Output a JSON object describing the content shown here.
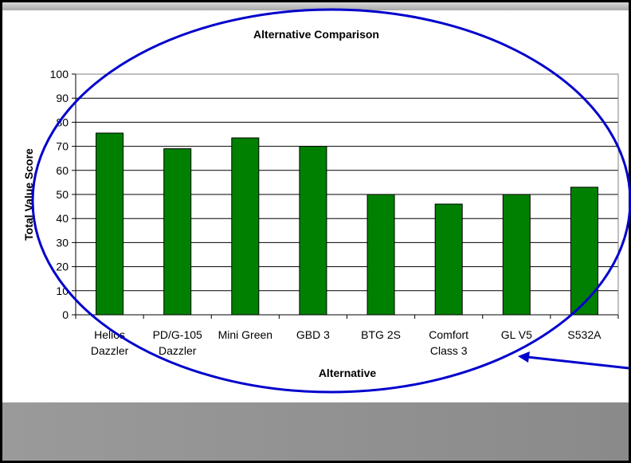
{
  "chart_data": {
    "type": "bar",
    "title": "Alternative Comparison",
    "xlabel": "Alternative",
    "ylabel": "Total Value Score",
    "ylim": [
      0,
      100
    ],
    "yticks": [
      "0",
      "10",
      "20",
      "30",
      "40",
      "50",
      "60",
      "70",
      "80",
      "90",
      "100"
    ],
    "categories": [
      "Helios Dazzler",
      "PD/G-105 Dazzler",
      "Mini Green",
      "GBD 3",
      "BTG 2S",
      "Comfort Class 3",
      "GL V5",
      "S532A"
    ],
    "category_lines": [
      [
        "Helios",
        "Dazzler"
      ],
      [
        "PD/G-105",
        "Dazzler"
      ],
      [
        "Mini Green"
      ],
      [
        "GBD 3"
      ],
      [
        "BTG 2S"
      ],
      [
        "Comfort",
        "Class 3"
      ],
      [
        "GL V5"
      ],
      [
        "S532A"
      ]
    ],
    "values": [
      75.5,
      69,
      73.5,
      70,
      50,
      46,
      50,
      53
    ],
    "grid": true,
    "legend": "none",
    "bar_color": "#008000",
    "annotation_color": "#0000cc"
  }
}
